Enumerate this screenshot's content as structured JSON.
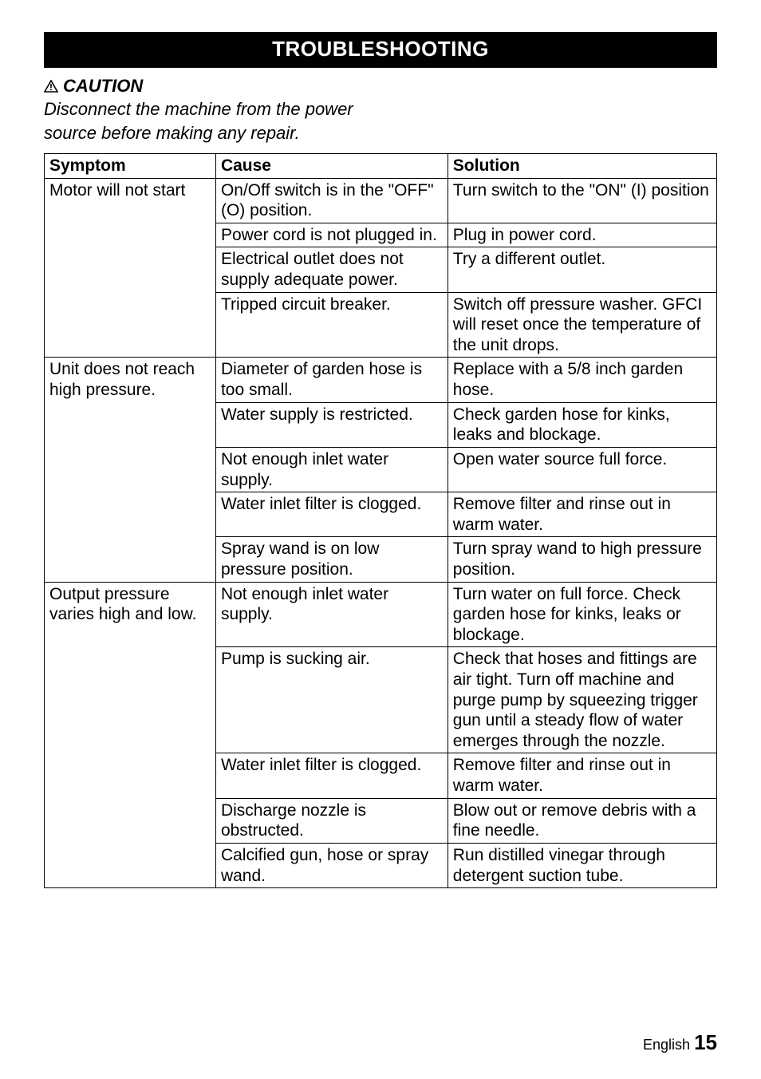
{
  "section_title": "TROUBLESHOOTING",
  "caution": {
    "label": "CAUTION",
    "text_line1": "Disconnect the machine from the power",
    "text_line2": "source before making any repair.",
    "icon_name": "warning-triangle-icon"
  },
  "table": {
    "header_fontsize": 21,
    "cell_fontsize": 21,
    "border_color": "#000000",
    "columns": [
      "Symptom",
      "Cause",
      "Solution"
    ],
    "col_widths_pct": [
      25.5,
      34.5,
      40
    ],
    "groups": [
      {
        "symptom": "Motor will not start",
        "rows": [
          {
            "cause": "On/Off switch is in the \"OFF\" (O) position.",
            "solution": "Turn switch to the \"ON\" (I) position"
          },
          {
            "cause": "Power cord is not plugged in.",
            "solution": "Plug in power cord."
          },
          {
            "cause": "Electrical outlet does not supply adequate power.",
            "solution": "Try a different outlet."
          },
          {
            "cause": "Tripped circuit breaker.",
            "solution": "Switch off pressure washer. GFCI will reset once the temperature of the unit drops."
          }
        ]
      },
      {
        "symptom": "Unit does not reach high pressure.",
        "rows": [
          {
            "cause": "Diameter of garden hose is too small.",
            "solution": "Replace with a 5/8 inch garden hose."
          },
          {
            "cause": "Water supply is restricted.",
            "solution": "Check garden hose for kinks, leaks and blockage."
          },
          {
            "cause": "Not enough inlet water supply.",
            "solution": "Open water source full force."
          },
          {
            "cause": "Water inlet filter is clogged.",
            "solution": "Remove filter and rinse out in warm water."
          },
          {
            "cause": "Spray wand is on low pressure position.",
            "solution": "Turn spray wand to high pressure position."
          }
        ]
      },
      {
        "symptom": "Output pressure varies high and low.",
        "rows": [
          {
            "cause": "Not enough inlet water supply.",
            "solution": "Turn water on full force. Check garden hose for kinks, leaks or blockage."
          },
          {
            "cause": "Pump is sucking air.",
            "solution": "Check that hoses and fittings are air tight. Turn off machine and purge pump by squeezing trigger gun until a steady flow of water emerges through the nozzle."
          },
          {
            "cause": "Water inlet filter is clogged.",
            "solution": "Remove filter and rinse out in warm water."
          },
          {
            "cause": "Discharge nozzle is obstructed.",
            "solution": "Blow out or remove debris with a fine needle."
          },
          {
            "cause": "Calcified gun, hose or spray wand.",
            "solution": "Run distilled vinegar through detergent suction tube."
          }
        ]
      }
    ]
  },
  "footer": {
    "language": "English",
    "page_number": "15"
  },
  "colors": {
    "page_bg": "#ffffff",
    "header_bg": "#000000",
    "header_fg": "#ffffff",
    "text": "#000000",
    "table_border": "#000000"
  },
  "typography": {
    "section_title_fontsize": 26,
    "caution_fontsize": 22,
    "footer_lang_fontsize": 18,
    "footer_page_fontsize": 26
  }
}
